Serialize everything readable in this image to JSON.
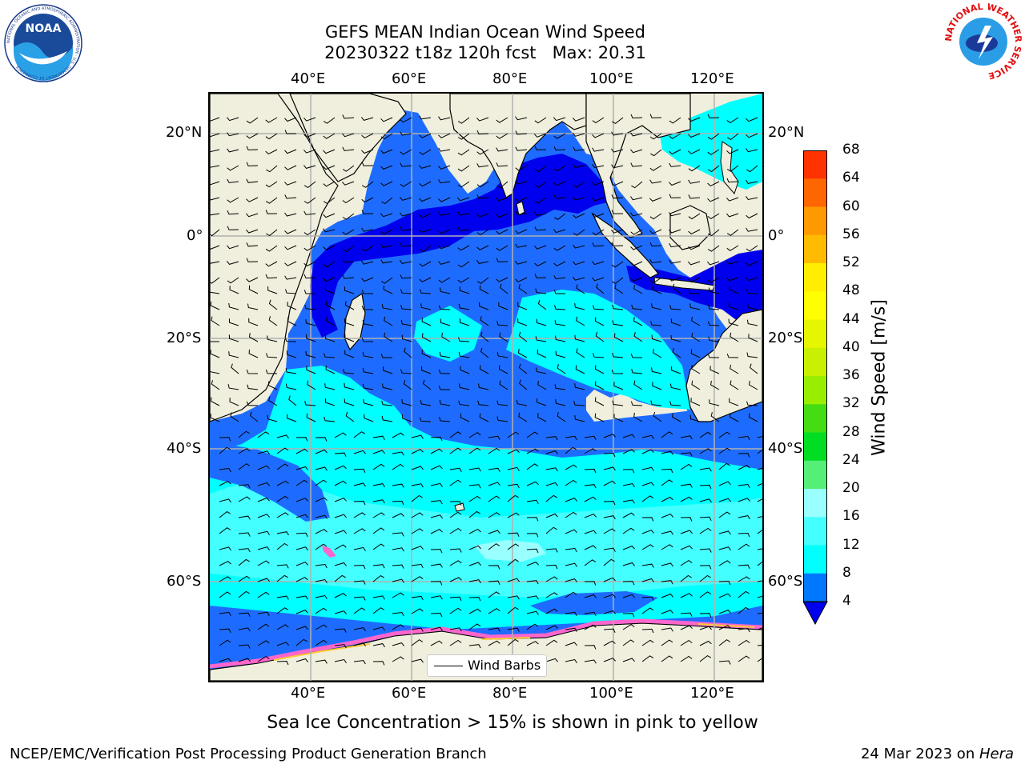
{
  "title": {
    "line1": "GEFS MEAN Indian Ocean Wind Speed",
    "line2": "20230322 t18z 120h fcst   Max: 20.31"
  },
  "axes": {
    "lon_ticks": [
      "40°E",
      "60°E",
      "80°E",
      "100°E",
      "120°E"
    ],
    "lat_ticks": [
      "20°N",
      "0°",
      "20°S",
      "40°S",
      "60°S"
    ]
  },
  "legend": {
    "label": "Wind Barbs"
  },
  "colorbar": {
    "label": "Wind Speed [m/s]",
    "ticks": [
      "68",
      "64",
      "60",
      "56",
      "52",
      "48",
      "44",
      "40",
      "36",
      "32",
      "28",
      "24",
      "20",
      "16",
      "12",
      "8",
      "4"
    ],
    "colors": [
      "#ff0000",
      "#ff3300",
      "#ff6600",
      "#ff9900",
      "#ffbb00",
      "#ffee00",
      "#ffff00",
      "#e6f500",
      "#c8f000",
      "#99ee00",
      "#44dd11",
      "#00dd22",
      "#55ee77",
      "#99ffff",
      "#44ffff",
      "#00ffff",
      "#0077ff"
    ],
    "extend_color": "#0000ee"
  },
  "caption": "Sea Ice Concentration > 15% is shown in pink to yellow",
  "footer": {
    "left": "NCEP/EMC/Verification Post Processing Product Generation Branch",
    "date": "24 Mar 2023 on ",
    "machine": "Hera"
  },
  "logos": {
    "noaa": "NOAA",
    "nws": "NATIONAL WEATHER SERVICE",
    "noaa_ring": "NATIONAL OCEANIC AND ATMOSPHERIC ADMINISTRATION · U.S. DEPARTMENT OF COMMERCE"
  },
  "map_colors": {
    "land": "#f0efdd",
    "band_4_8": "#1e6cff",
    "band_below_4": "#0000ee",
    "band_8_12": "#00ffff",
    "band_12_16": "#44ffff",
    "band_16_20": "#99ffff",
    "sea_ice": "#ff66cc",
    "grid": "#b0b0b0"
  }
}
